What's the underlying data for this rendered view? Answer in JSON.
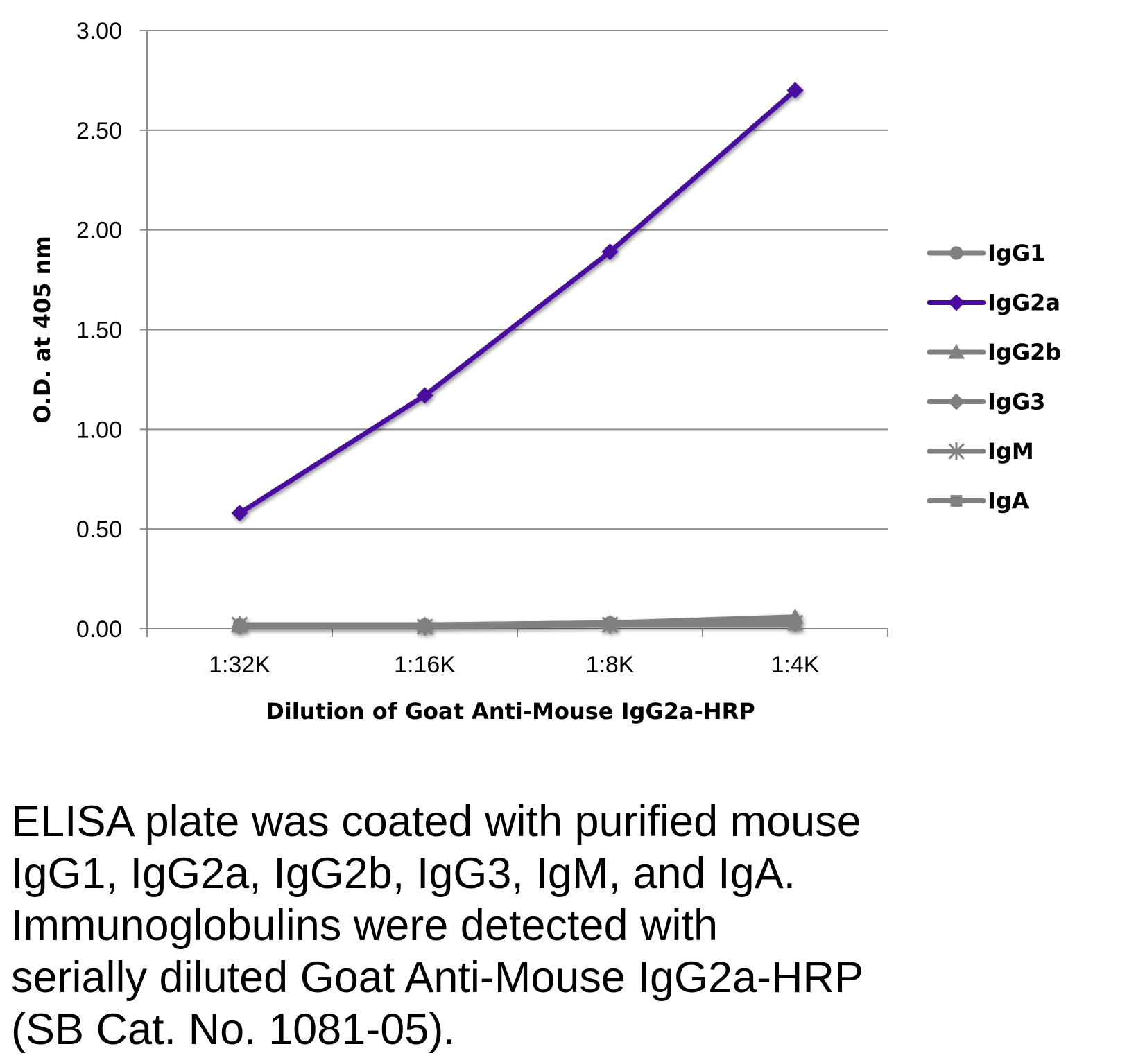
{
  "chart_data": {
    "type": "line",
    "categories": [
      "1:32K",
      "1:16K",
      "1:8K",
      "1:4K"
    ],
    "xlabel": "Dilution of Goat Anti-Mouse IgG2a-HRP",
    "ylabel": "O.D. at 405 nm",
    "ylim": [
      0,
      3
    ],
    "yticks": [
      "0.00",
      "0.50",
      "1.00",
      "1.50",
      "2.00",
      "2.50",
      "3.00"
    ],
    "grid": true,
    "legend_position": "right",
    "series": [
      {
        "name": "IgG1",
        "marker": "circle",
        "color": "#808080",
        "values": [
          0.02,
          0.02,
          0.03,
          0.04
        ]
      },
      {
        "name": "IgG2a",
        "marker": "diamond",
        "color": "#4a0aa0",
        "values": [
          0.58,
          1.17,
          1.89,
          2.7
        ]
      },
      {
        "name": "IgG2b",
        "marker": "triangle",
        "color": "#808080",
        "values": [
          0.02,
          0.02,
          0.03,
          0.06
        ]
      },
      {
        "name": "IgG3",
        "marker": "diamond",
        "color": "#808080",
        "values": [
          0.01,
          0.01,
          0.02,
          0.03
        ]
      },
      {
        "name": "IgM",
        "marker": "star",
        "color": "#808080",
        "values": [
          0.02,
          0.01,
          0.02,
          0.03
        ]
      },
      {
        "name": "IgA",
        "marker": "square",
        "color": "#808080",
        "values": [
          0.01,
          0.01,
          0.02,
          0.02
        ]
      }
    ]
  },
  "caption": {
    "lines": [
      "ELISA plate was coated with purified mouse",
      "IgG1, IgG2a, IgG2b, IgG3, IgM, and IgA.",
      "Immunoglobulins were detected with",
      "serially diluted Goat Anti-Mouse IgG2a-HRP",
      "(SB Cat. No. 1081-05)."
    ]
  }
}
